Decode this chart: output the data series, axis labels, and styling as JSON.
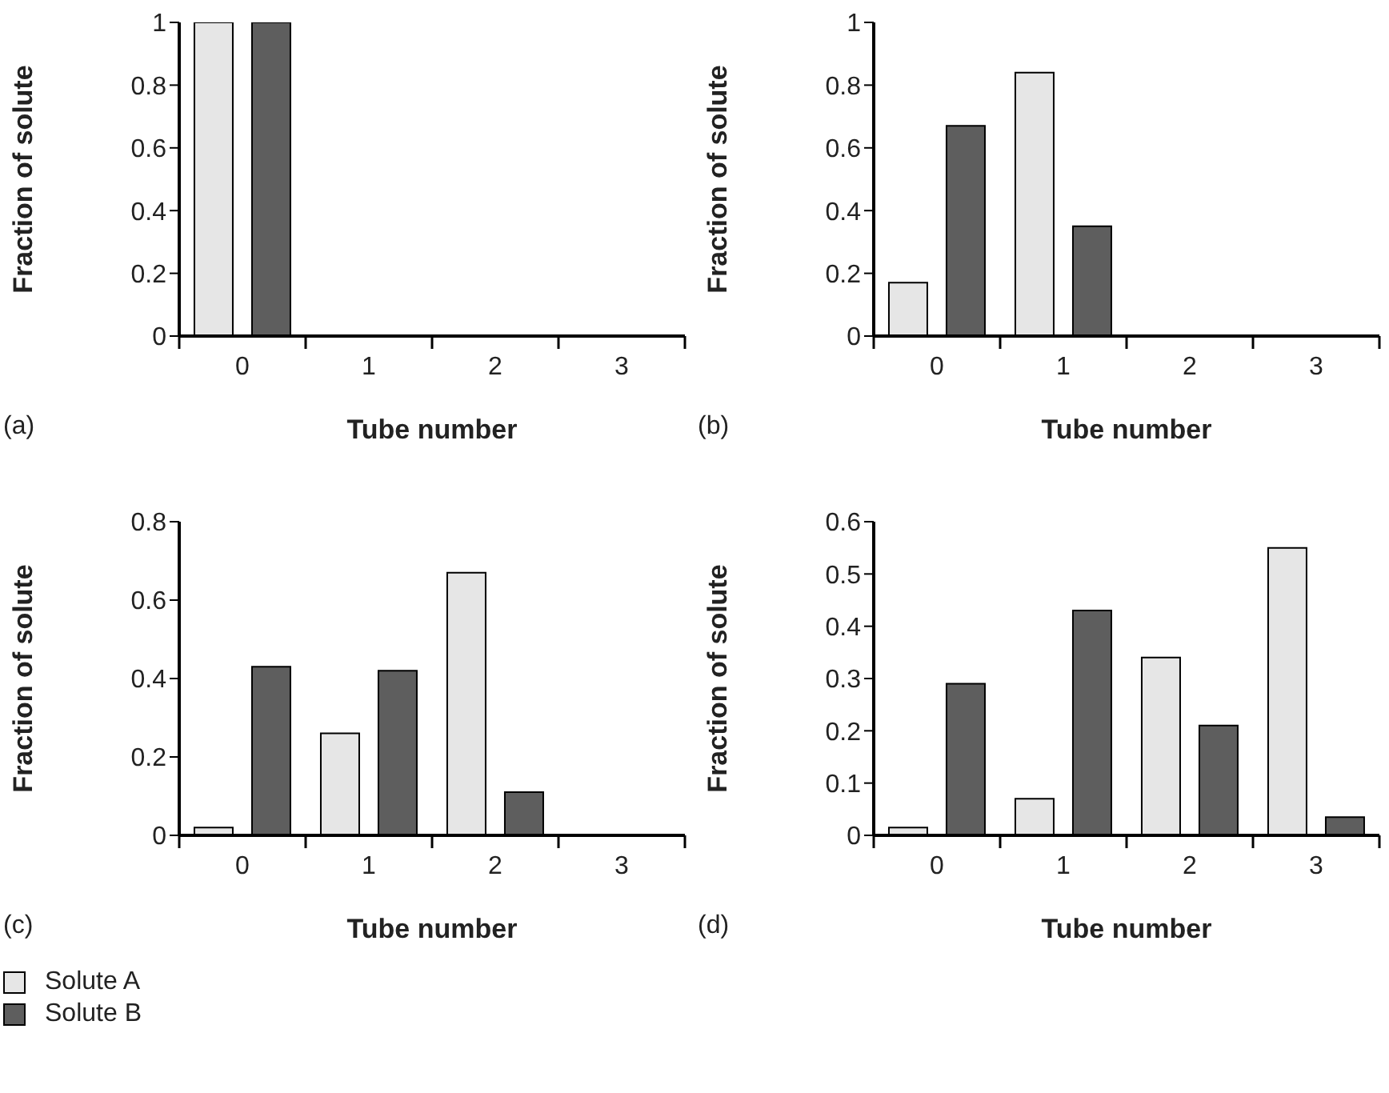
{
  "chart_data": [
    {
      "type": "bar",
      "ylabel": "Fraction of solute",
      "xlabel": "Tube number",
      "annotations": [
        "(a)"
      ],
      "categories": [
        "0",
        "1",
        "2",
        "3"
      ],
      "ylim": [
        0,
        1
      ],
      "yticks": [
        0,
        0.2,
        0.4,
        0.6,
        0.8,
        1
      ],
      "series": [
        {
          "color": "#e6e6e6",
          "values": [
            1,
            0,
            0,
            0
          ]
        },
        {
          "color": "#5e5e5e",
          "values": [
            1,
            0,
            0,
            0
          ]
        }
      ]
    },
    {
      "type": "bar",
      "ylabel": "Fraction of solute",
      "xlabel": "Tube number",
      "annotations": [
        "(b)"
      ],
      "categories": [
        "0",
        "1",
        "2",
        "3"
      ],
      "ylim": [
        0,
        1
      ],
      "yticks": [
        0,
        0.2,
        0.4,
        0.6,
        0.8,
        1
      ],
      "series": [
        {
          "color": "#e6e6e6",
          "values": [
            0.17,
            0.84,
            0,
            0
          ]
        },
        {
          "color": "#5e5e5e",
          "values": [
            0.67,
            0.35,
            0,
            0
          ]
        }
      ]
    },
    {
      "type": "bar",
      "ylabel": "Fraction of solute",
      "xlabel": "Tube number",
      "annotations": [
        "(c)"
      ],
      "categories": [
        "0",
        "1",
        "2",
        "3"
      ],
      "ylim": [
        0,
        0.8
      ],
      "yticks": [
        0,
        0.2,
        0.4,
        0.6,
        0.8
      ],
      "legend": "bottom",
      "series": [
        {
          "name": "Solute A",
          "color": "#e6e6e6",
          "values": [
            0.02,
            0.26,
            0.67,
            0
          ]
        },
        {
          "name": "Solute B",
          "color": "#5e5e5e",
          "values": [
            0.43,
            0.42,
            0.11,
            0
          ]
        }
      ]
    },
    {
      "type": "bar",
      "ylabel": "Fraction of solute",
      "xlabel": "Tube number",
      "annotations": [
        "(d)"
      ],
      "categories": [
        "0",
        "1",
        "2",
        "3"
      ],
      "ylim": [
        0,
        0.6
      ],
      "yticks": [
        0,
        0.1,
        0.2,
        0.3,
        0.4,
        0.5,
        0.6
      ],
      "series": [
        {
          "color": "#e6e6e6",
          "values": [
            0.015,
            0.07,
            0.34,
            0.55
          ]
        },
        {
          "color": "#5e5e5e",
          "values": [
            0.29,
            0.43,
            0.21,
            0.035
          ]
        }
      ]
    }
  ]
}
